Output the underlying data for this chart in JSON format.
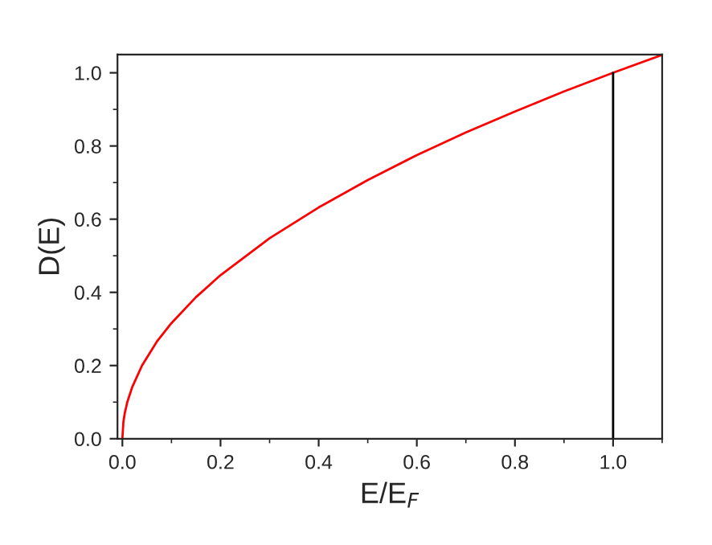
{
  "chart_data": {
    "type": "line",
    "xlabel": "E/E$_{F}$",
    "ylabel": "D(E)",
    "xlim": [
      -0.01,
      1.1
    ],
    "ylim": [
      0,
      1.05
    ],
    "xticks": [
      {
        "value": 0,
        "label": "0.0"
      },
      0.2,
      0.4,
      0.6,
      0.8,
      {
        "value": 1,
        "label": "1.0"
      }
    ],
    "yticks": [
      {
        "value": 0,
        "label": "0.0"
      },
      0.2,
      0.4,
      0.6,
      0.8,
      {
        "value": 1,
        "label": "1.0"
      }
    ],
    "grid": false,
    "marker": "none",
    "line_style": "solid",
    "series": [
      {
        "color": "#ff0000",
        "x": [
          0,
          0.002,
          0.005,
          0.01,
          0.02,
          0.04,
          0.07,
          0.1,
          0.15,
          0.2,
          0.3,
          0.4,
          0.5,
          0.6,
          0.7,
          0.8,
          0.9,
          1.0,
          1.1
        ],
        "values": [
          0,
          0.045,
          0.071,
          0.1,
          0.141,
          0.2,
          0.265,
          0.316,
          0.387,
          0.447,
          0.548,
          0.632,
          0.707,
          0.775,
          0.837,
          0.894,
          0.949,
          1.0,
          1.049
        ]
      },
      {
        "color": "#000000",
        "x": [
          1.0,
          1.0,
          1.0,
          1.0,
          1.0
        ],
        "values": [
          0,
          0.25,
          0.5,
          0.75,
          1.0
        ]
      }
    ]
  }
}
